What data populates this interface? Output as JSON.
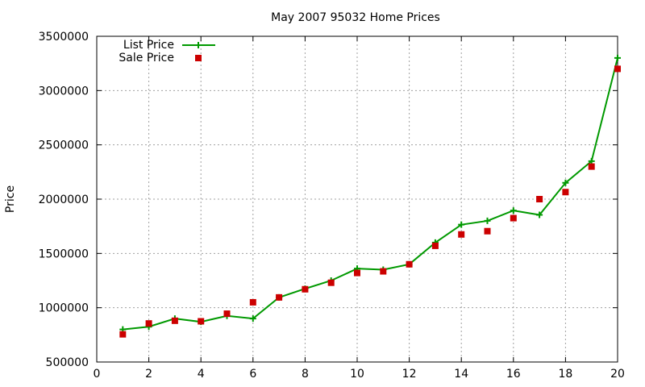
{
  "chart_data": {
    "type": "line",
    "title": "May 2007 95032 Home Prices",
    "xlabel": "",
    "ylabel": "Price",
    "xlim": [
      0,
      20
    ],
    "ylim": [
      500000,
      3500000
    ],
    "xticks": [
      0,
      2,
      4,
      6,
      8,
      10,
      12,
      14,
      16,
      18,
      20
    ],
    "yticks": [
      500000,
      1000000,
      1500000,
      2000000,
      2500000,
      3000000,
      3500000
    ],
    "grid": true,
    "legend_position": "top-left",
    "series": [
      {
        "name": "List Price",
        "style": "line-with-plus-markers",
        "color": "#009900",
        "x": [
          1,
          2,
          3,
          4,
          5,
          6,
          7,
          8,
          9,
          10,
          11,
          12,
          13,
          14,
          15,
          16,
          17,
          18,
          19,
          20
        ],
        "y": [
          800000,
          825000,
          900000,
          870000,
          925000,
          900000,
          1095000,
          1175000,
          1250000,
          1360000,
          1350000,
          1400000,
          1600000,
          1765000,
          1800000,
          1895000,
          1855000,
          2150000,
          2350000,
          3300000
        ]
      },
      {
        "name": "Sale Price",
        "style": "square-markers",
        "color": "#cc0000",
        "x": [
          1,
          2,
          3,
          4,
          5,
          6,
          7,
          8,
          9,
          10,
          11,
          12,
          13,
          14,
          15,
          16,
          17,
          18,
          19,
          20
        ],
        "y": [
          755000,
          855000,
          880000,
          875000,
          945000,
          1050000,
          1095000,
          1170000,
          1230000,
          1320000,
          1335000,
          1400000,
          1570000,
          1675000,
          1705000,
          1825000,
          2000000,
          2065000,
          2300000,
          3200000
        ]
      }
    ]
  }
}
